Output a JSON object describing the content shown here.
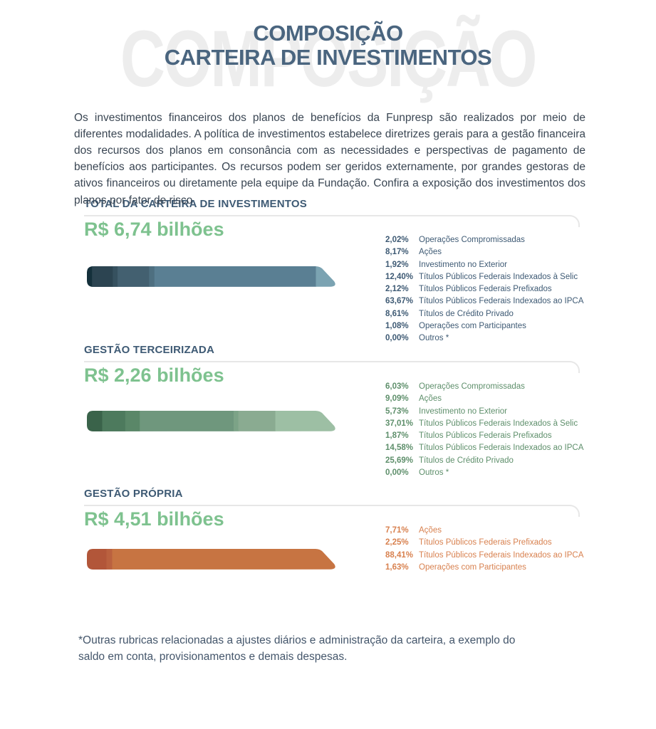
{
  "page": {
    "watermark": "COMPOSIÇÃO",
    "title_line1": "COMPOSIÇÃO",
    "title_line2": "CARTEIRA DE INVESTIMENTOS",
    "intro": "Os investimentos financeiros dos planos de benefícios da Funpresp são realizados por meio de diferentes modalidades. A política de investimentos estabelece diretrizes gerais para a gestão financeira dos recursos dos planos em consonância com as necessidades e perspectivas de pagamento de benefícios aos participantes. Os recursos podem ser geridos externamente, por grandes gestoras de ativos financeiros ou diretamente pela equipe da Fundação. Confira a exposição dos investimentos dos planos por fator de risco",
    "footnote": "*Outras rubricas relacionadas a ajustes diários e administração da carteira, a exemplo do saldo em conta, provisionamentos e demais despesas."
  },
  "colors": {
    "title_blue": "#4a657f",
    "section_title_blue": "#3e5a74",
    "amount_green": "#7ec28f",
    "body_text": "#3a4653",
    "divider_gray": "#e7e7e7"
  },
  "chart_data": [
    {
      "type": "bar",
      "orientation": "horizontal-stacked",
      "title": "TOTAL DA CARTEIRA DE INVESTIMENTOS",
      "total": "R$ 6,74 bilhões",
      "legend_color": "#3e5a74",
      "legend_position": "right",
      "xlim": [
        0,
        100
      ],
      "segments": [
        {
          "pct_label": "2,02%",
          "value": 2.02,
          "label": "Operações Compromissadas",
          "color": "#14303b"
        },
        {
          "pct_label": "8,17%",
          "value": 8.17,
          "label": "Ações",
          "color": "#2c4451"
        },
        {
          "pct_label": "1,92%",
          "value": 1.92,
          "label": "Investimento no Exterior",
          "color": "#36515f"
        },
        {
          "pct_label": "12,40%",
          "value": 12.4,
          "label": "Títulos Públicos Federais Indexados à Selic",
          "color": "#436070"
        },
        {
          "pct_label": "2,12%",
          "value": 2.12,
          "label": "Títulos Públicos Federais Prefixados",
          "color": "#4e6f80"
        },
        {
          "pct_label": "63,67%",
          "value": 63.67,
          "label": "Títulos Públicos Federais Indexados ao IPCA",
          "color": "#5a7f93"
        },
        {
          "pct_label": "8,61%",
          "value": 8.61,
          "label": "Títulos de Crédito Privado",
          "color": "#7ba3b2"
        },
        {
          "pct_label": "1,08%",
          "value": 1.08,
          "label": "Operações com Participantes",
          "color": "#8fb5c2"
        },
        {
          "pct_label": "0,00%",
          "value": 0.0,
          "label": "Outros *",
          "color": "#a5c8d3"
        }
      ]
    },
    {
      "type": "bar",
      "orientation": "horizontal-stacked",
      "title": "GESTÃO TERCEIRIZADA",
      "total": "R$ 2,26 bilhões",
      "legend_color": "#5e8f6b",
      "legend_position": "right",
      "xlim": [
        0,
        100
      ],
      "segments": [
        {
          "pct_label": "6,03%",
          "value": 6.03,
          "label": "Operações Compromissadas",
          "color": "#3a634a"
        },
        {
          "pct_label": "9,09%",
          "value": 9.09,
          "label": "Ações",
          "color": "#4d7a5d"
        },
        {
          "pct_label": "5,73%",
          "value": 5.73,
          "label": "Investimento no Exterior",
          "color": "#5a8768"
        },
        {
          "pct_label": "37,01%",
          "value": 37.01,
          "label": "Títulos Públicos Federais Indexados à Selic",
          "color": "#6f977d"
        },
        {
          "pct_label": "1,87%",
          "value": 1.87,
          "label": "Títulos Públicos Federais Prefixados",
          "color": "#7ca387"
        },
        {
          "pct_label": "14,58%",
          "value": 14.58,
          "label": "Títulos Públicos Federais Indexados ao IPCA",
          "color": "#8aab91"
        },
        {
          "pct_label": "25,69%",
          "value": 25.69,
          "label": "Títulos de Crédito Privado",
          "color": "#9dbfa4"
        },
        {
          "pct_label": "0,00%",
          "value": 0.0,
          "label": "Outros *",
          "color": "#aecfb5"
        }
      ]
    },
    {
      "type": "bar",
      "orientation": "horizontal-stacked",
      "title": "GESTÃO PRÓPRIA",
      "total": "R$ 4,51 bilhões",
      "legend_color": "#d8814f",
      "legend_position": "right",
      "xlim": [
        0,
        100
      ],
      "segments": [
        {
          "pct_label": "7,71%",
          "value": 7.71,
          "label": "Ações",
          "color": "#b25639"
        },
        {
          "pct_label": "2,25%",
          "value": 2.25,
          "label": "Títulos Públicos Federais Prefixados",
          "color": "#ba613f"
        },
        {
          "pct_label": "88,41%",
          "value": 88.41,
          "label": "Títulos Públicos Federais Indexados ao IPCA",
          "color": "#c77442"
        },
        {
          "pct_label": "1,63%",
          "value": 1.63,
          "label": "Operações com Participantes",
          "color": "#d78b5c"
        }
      ]
    }
  ]
}
